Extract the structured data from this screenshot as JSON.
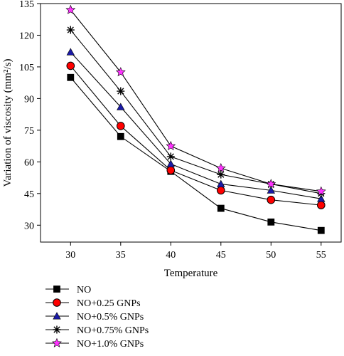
{
  "chart_data": {
    "type": "line",
    "title": "",
    "xlabel": "Temperature",
    "ylabel": "Variation of viscosity (mm²/s)",
    "x": [
      30,
      35,
      40,
      45,
      50,
      55
    ],
    "xticks": [
      "30",
      "35",
      "40",
      "45",
      "50",
      "55"
    ],
    "yticks": [
      "30",
      "45",
      "60",
      "75",
      "90",
      "105",
      "120",
      "135"
    ],
    "xlim": [
      27,
      57
    ],
    "ylim": [
      22,
      135
    ],
    "grid": false,
    "legend_position": "bottom-left",
    "series": [
      {
        "name": "NO",
        "marker": "square",
        "color": "#000000",
        "values": [
          100,
          72,
          55.5,
          38,
          31.5,
          27.5
        ]
      },
      {
        "name": "NO+0.25 GNPs",
        "marker": "circle",
        "color": "#ff0000",
        "values": [
          105.5,
          77,
          56,
          46.5,
          42,
          39.5
        ]
      },
      {
        "name": "NO+0.5% GNPs",
        "marker": "triangle",
        "color": "#1a1aa6",
        "values": [
          112,
          86,
          59,
          49.5,
          46.5,
          42.5
        ]
      },
      {
        "name": "NO+0.75% GNPs",
        "marker": "star-cross",
        "color": "#000000",
        "values": [
          122.5,
          93.5,
          62.5,
          54,
          49.5,
          45
        ]
      },
      {
        "name": "NO+1.0% GNPs",
        "marker": "star",
        "color": "#ff33ff",
        "values": [
          132,
          102.5,
          67.5,
          57,
          49.5,
          46
        ]
      }
    ]
  }
}
